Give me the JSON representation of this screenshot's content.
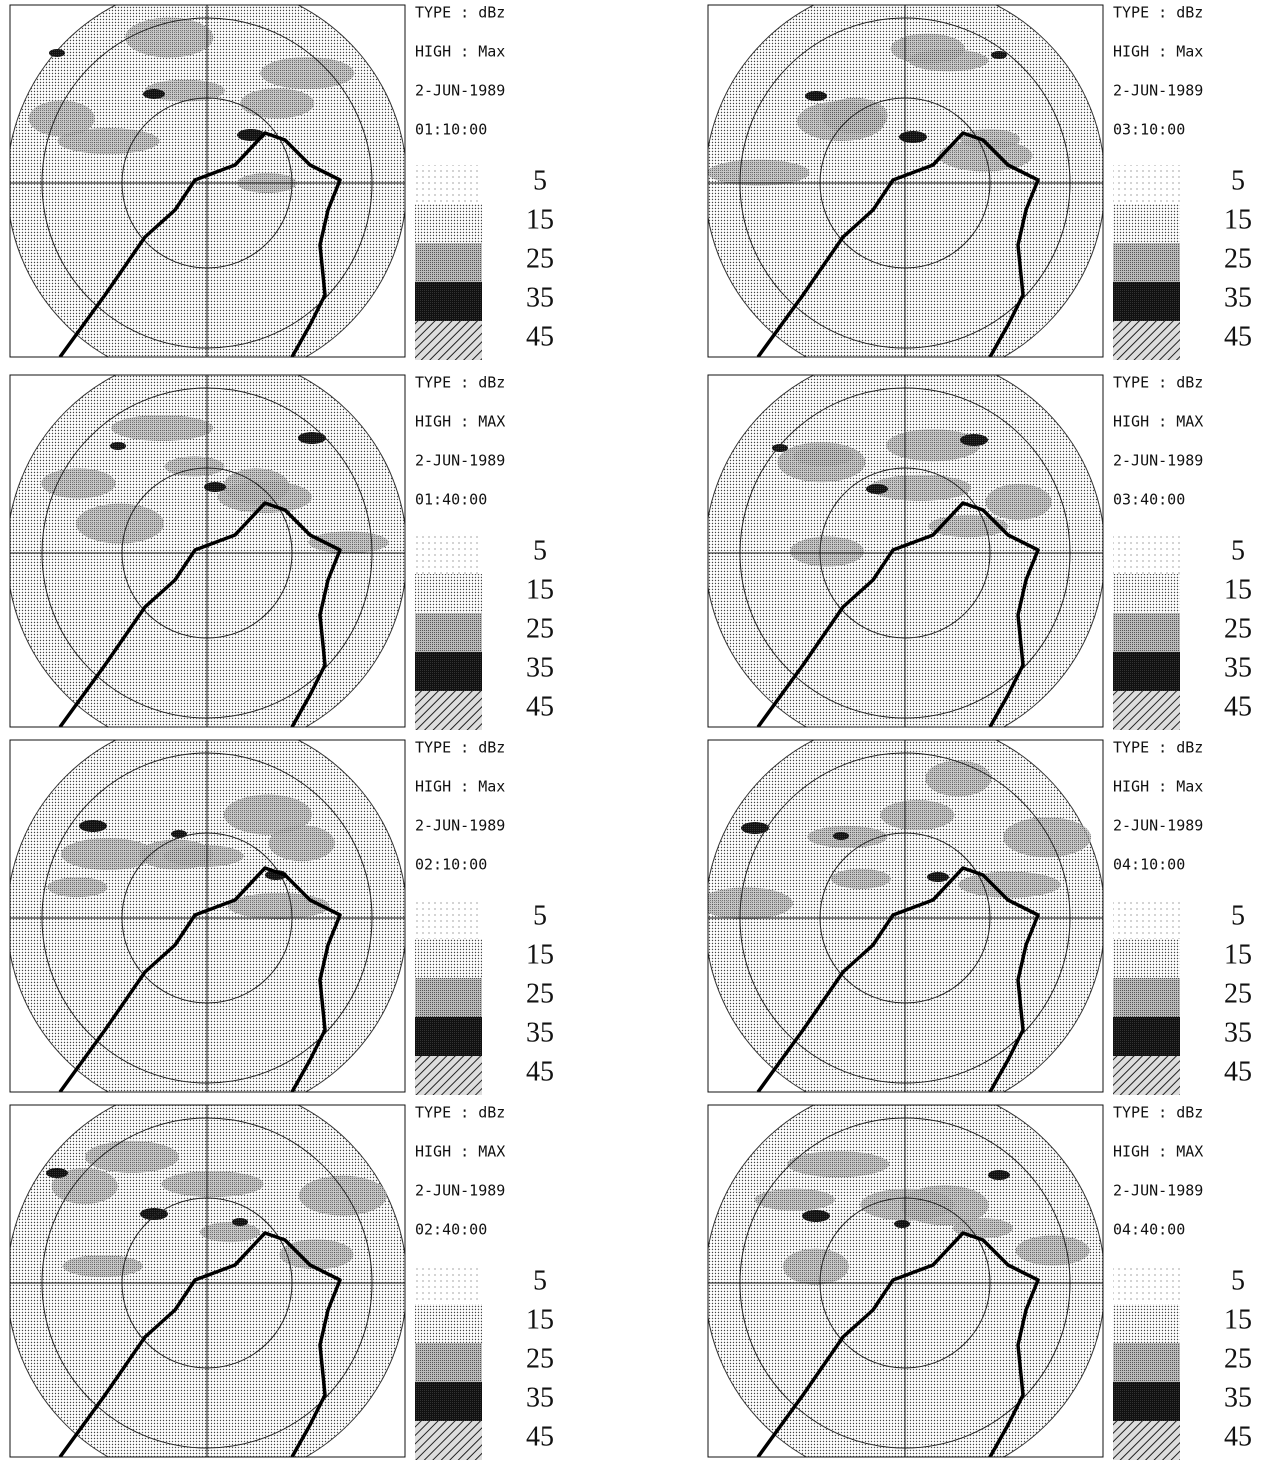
{
  "panels": [
    {
      "type": "TYPE : dBz",
      "high": "HIGH : Max",
      "date": "2-JUN-1989",
      "time": "01:10:00",
      "legend": [
        5,
        15,
        25,
        35,
        45
      ]
    },
    {
      "type": "TYPE : dBz",
      "high": "HIGH : MAX",
      "date": "2-JUN-1989",
      "time": "01:40:00",
      "legend": [
        5,
        15,
        25,
        35,
        45
      ]
    },
    {
      "type": "TYPE : dBz",
      "high": "HIGH : Max",
      "date": "2-JUN-1989",
      "time": "02:10:00",
      "legend": [
        5,
        15,
        25,
        35,
        45
      ]
    },
    {
      "type": "TYPE : dBz",
      "high": "HIGH : MAX",
      "date": "2-JUN-1989",
      "time": "02:40:00",
      "legend": [
        5,
        15,
        25,
        35,
        45
      ]
    },
    {
      "type": "TYPE : dBz",
      "high": "HIGH : Max",
      "date": "2-JUN-1989",
      "time": "03:10:00",
      "legend": [
        5,
        15,
        25,
        35,
        45
      ]
    },
    {
      "type": "TYPE : dBz",
      "high": "HIGH : MAX",
      "date": "2-JUN-1989",
      "time": "03:40:00",
      "legend": [
        5,
        15,
        25,
        35,
        45
      ]
    },
    {
      "type": "TYPE : dBz",
      "high": "HIGH : Max",
      "date": "2-JUN-1989",
      "time": "04:10:00",
      "legend": [
        5,
        15,
        25,
        35,
        45
      ]
    },
    {
      "type": "TYPE : dBz",
      "high": "HIGH : MAX",
      "date": "2-JUN-1989",
      "time": "04:40:00",
      "legend": [
        5,
        15,
        25,
        35,
        45
      ]
    }
  ]
}
